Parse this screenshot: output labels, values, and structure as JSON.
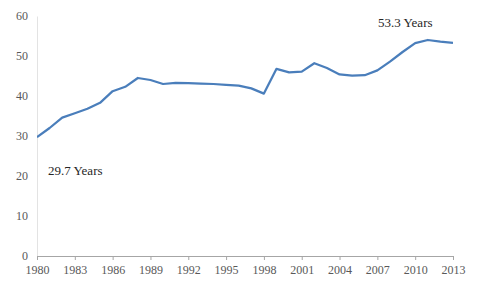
{
  "chart_data": {
    "type": "line",
    "x": [
      1980,
      1981,
      1982,
      1983,
      1984,
      1985,
      1986,
      1987,
      1988,
      1989,
      1990,
      1991,
      1992,
      1993,
      1994,
      1995,
      1996,
      1997,
      1998,
      1999,
      2000,
      2001,
      2002,
      2003,
      2004,
      2005,
      2006,
      2007,
      2008,
      2009,
      2010,
      2011,
      2012,
      2013
    ],
    "values": [
      29.7,
      32.0,
      34.6,
      35.7,
      36.8,
      38.3,
      41.2,
      42.3,
      44.5,
      44.0,
      43.0,
      43.3,
      43.2,
      43.1,
      43.0,
      42.8,
      42.6,
      41.9,
      40.6,
      46.8,
      45.9,
      46.1,
      48.2,
      47.0,
      45.4,
      45.1,
      45.2,
      46.4,
      48.6,
      51.0,
      53.2,
      54.0,
      53.6,
      53.3
    ],
    "color": "#4a7ebb",
    "xlim": [
      1980,
      2013
    ],
    "xticks": [
      1980,
      1983,
      1986,
      1989,
      1992,
      1995,
      1998,
      2001,
      2004,
      2007,
      2010,
      2013
    ],
    "ylim": [
      0,
      60
    ],
    "yticks": [
      0,
      10,
      20,
      30,
      40,
      50,
      60
    ],
    "grid": false,
    "annotations": [
      "29.7 Years",
      "53.3 Years"
    ]
  }
}
